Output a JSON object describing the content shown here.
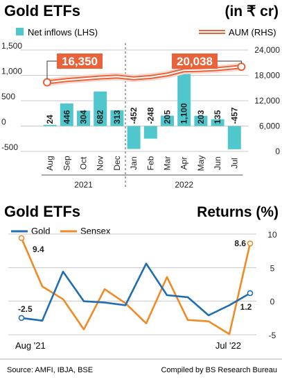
{
  "chart_data": [
    {
      "type": "bar+line",
      "title": "Gold ETFs",
      "unit_label": "(in ₹ cr)",
      "legend": {
        "bars": "Net inflows (LHS)",
        "line": "AUM (RHS)"
      },
      "colors": {
        "bars": "#4fc7cc",
        "line": "#e8623a",
        "line_fill": "#f7d9cf",
        "callout_bg": "#e8623a",
        "grid": "#c8c8c8"
      },
      "categories": [
        "Aug",
        "Sep",
        "Oct",
        "Nov",
        "Dec",
        "Jan",
        "Feb",
        "Mar",
        "Apr",
        "May",
        "Jun",
        "Jul"
      ],
      "years": [
        {
          "label": "2021",
          "from": 0,
          "to": 4
        },
        {
          "label": "2022",
          "from": 5,
          "to": 11
        }
      ],
      "left_axis": {
        "ticks": [
          1500,
          1000,
          500,
          0,
          -500
        ],
        "tick_labels": [
          "1,500",
          "1,000",
          "500",
          "0",
          "-500"
        ],
        "ylim": [
          -500,
          1500
        ]
      },
      "right_axis": {
        "ticks": [
          24000,
          18000,
          12000,
          6000,
          0
        ],
        "tick_labels": [
          "24,000",
          "18,000",
          "12,000",
          "6,000",
          "0"
        ],
        "ylim": [
          0,
          24000
        ]
      },
      "series": [
        {
          "name": "Net inflows (LHS)",
          "values": [
            24,
            446,
            304,
            682,
            313,
            -452,
            -248,
            205,
            1100,
            203,
            135,
            -457
          ],
          "labels": [
            "24",
            "446",
            "304",
            "682",
            "313",
            "-452",
            "-248",
            "205",
            "1,100",
            "203",
            "135",
            "-457"
          ]
        },
        {
          "name": "AUM (RHS)",
          "values": [
            16350,
            16900,
            17200,
            17500,
            17700,
            17300,
            17600,
            18200,
            19200,
            19300,
            19500,
            20038
          ]
        }
      ],
      "annotations": [
        {
          "index": 0,
          "text": "16,350"
        },
        {
          "index": 11,
          "text": "20,038"
        }
      ]
    },
    {
      "type": "line",
      "title": "Gold ETFs",
      "right_title": "Returns (%)",
      "colors": {
        "gold": "#1f6db3",
        "sensex": "#f08a24",
        "grid": "#c8c8c8"
      },
      "y_axis": {
        "ticks": [
          10,
          5,
          0,
          -5
        ],
        "ylim": [
          -5,
          10
        ]
      },
      "x_labels": {
        "start": "Aug '21",
        "end": "Jul '22"
      },
      "series": [
        {
          "name": "Gold",
          "values": [
            -2.5,
            -2.9,
            4.4,
            0.0,
            -0.2,
            -0.6,
            5.6,
            0.9,
            0.6,
            -2.1,
            -0.6,
            1.2
          ]
        },
        {
          "name": "Sensex",
          "values": [
            9.4,
            2.2,
            0.3,
            -4.2,
            1.8,
            -0.3,
            -3.3,
            3.6,
            -2.8,
            -3.0,
            -4.9,
            8.6
          ]
        }
      ],
      "annotations": [
        {
          "series": "Gold",
          "index": 0,
          "text": "-2.5"
        },
        {
          "series": "Gold",
          "index": 11,
          "text": "1.2"
        },
        {
          "series": "Sensex",
          "index": 0,
          "text": "9.4"
        },
        {
          "series": "Sensex",
          "index": 11,
          "text": "8.6"
        }
      ]
    }
  ],
  "footer": {
    "source": "Source: AMFI, IBJA, BSE",
    "credit": "Compiled by BS Research Bureau"
  }
}
